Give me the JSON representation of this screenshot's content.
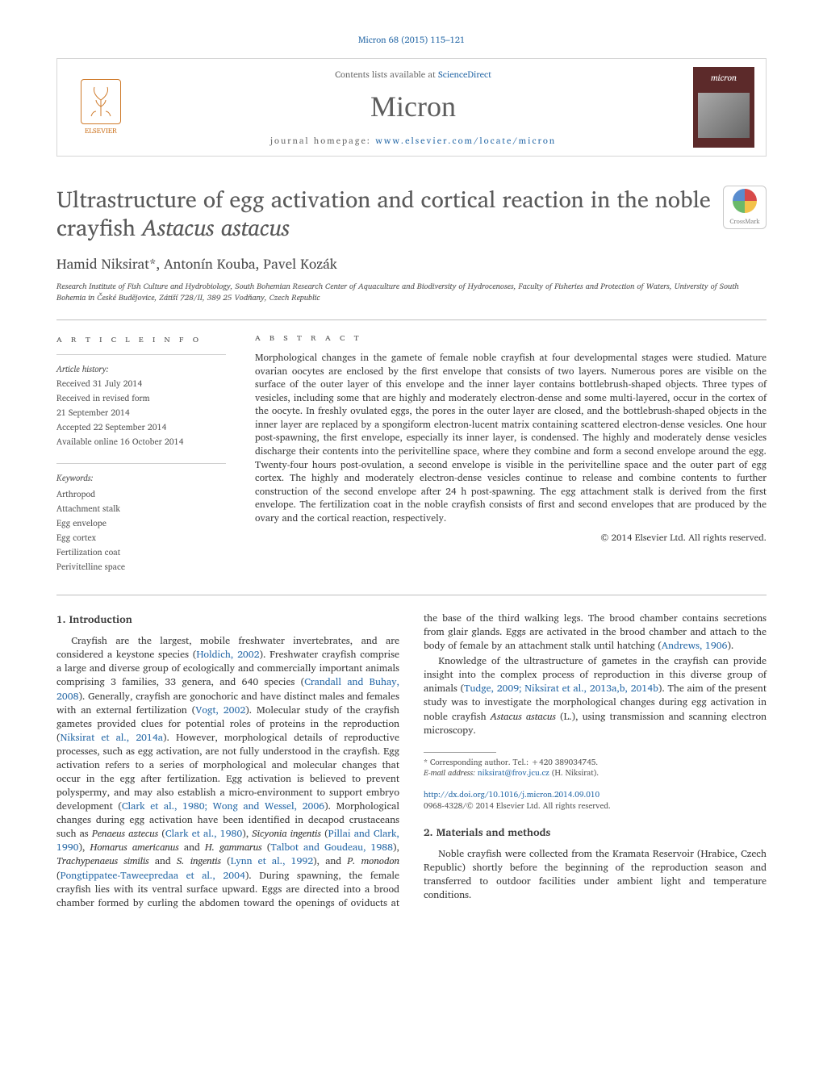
{
  "top_citation": "Micron 68 (2015) 115–121",
  "header": {
    "contents_prefix": "Contents lists available at ",
    "contents_link_text": "ScienceDirect",
    "journal_name": "Micron",
    "homepage_prefix": "journal homepage: ",
    "homepage_link_text": "www.elsevier.com/locate/micron",
    "publisher_name": "ELSEVIER",
    "cover_title": "micron"
  },
  "title_html": "Ultrastructure of egg activation and cortical reaction in the noble crayfish <em>Astacus astacus</em>",
  "crossmark_label": "CrossMark",
  "authors": "Hamid Niksirat*, Antonín Kouba, Pavel Kozák",
  "affiliation": "Research Institute of Fish Culture and Hydrobiology, South Bohemian Research Center of Aquaculture and Biodiversity of Hydrocenoses, Faculty of Fisheries and Protection of Waters, University of South Bohemia in České Budějovice, Zátiší 728/II, 389 25 Vodňany, Czech Republic",
  "article_info": {
    "heading": "a r t i c l e   i n f o",
    "history_title": "Article history:",
    "history_lines": [
      "Received 31 July 2014",
      "Received in revised form",
      "21 September 2014",
      "Accepted 22 September 2014",
      "Available online 16 October 2014"
    ],
    "keywords_title": "Keywords:",
    "keywords": [
      "Arthropod",
      "Attachment stalk",
      "Egg envelope",
      "Egg cortex",
      "Fertilization coat",
      "Perivitelline space"
    ]
  },
  "abstract": {
    "heading": "a b s t r a c t",
    "text": "Morphological changes in the gamete of female noble crayfish at four developmental stages were studied. Mature ovarian oocytes are enclosed by the first envelope that consists of two layers. Numerous pores are visible on the surface of the outer layer of this envelope and the inner layer contains bottlebrush-shaped objects. Three types of vesicles, including some that are highly and moderately electron-dense and some multi-layered, occur in the cortex of the oocyte. In freshly ovulated eggs, the pores in the outer layer are closed, and the bottlebrush-shaped objects in the inner layer are replaced by a spongiform electron-lucent matrix containing scattered electron-dense vesicles. One hour post-spawning, the first envelope, especially its inner layer, is condensed. The highly and moderately dense vesicles discharge their contents into the perivitelline space, where they combine and form a second envelope around the egg. Twenty-four hours post-ovulation, a second envelope is visible in the perivitelline space and the outer part of egg cortex. The highly and moderately electron-dense vesicles continue to release and combine contents to further construction of the second envelope after 24 h post-spawning. The egg attachment stalk is derived from the first envelope. The fertilization coat in the noble crayfish consists of first and second envelopes that are produced by the ovary and the cortical reaction, respectively.",
    "copyright": "© 2014 Elsevier Ltd. All rights reserved."
  },
  "intro": {
    "heading": "1.  Introduction",
    "para1_pre": "Crayfish are the largest, mobile freshwater invertebrates, and are considered a keystone species (",
    "link1": "Holdich, 2002",
    "para1_mid1": "). Freshwater crayfish comprise a large and diverse group of ecologically and commercially important animals comprising 3 families, 33 genera, and 640 species (",
    "link2": "Crandall and Buhay, 2008",
    "para1_mid2": "). Generally, crayfish are gonochoric and have distinct males and females with an external fertilization (",
    "link3": "Vogt, 2002",
    "para1_mid3": "). Molecular study of the crayfish gametes provided clues for potential roles of proteins in the reproduction (",
    "link4": "Niksirat et al., 2014a",
    "para1_mid4": "). However, morphological details of reproductive processes, such as egg activation, are not fully understood in the crayfish. Egg activation refers to a series of morphological and molecular changes that occur in the egg after fertilization. Egg activation is believed to prevent polyspermy, and may also establish a micro-environment to support embryo development (",
    "link5": "Clark et al., 1980; Wong and Wessel, 2006",
    "para1_mid5": "). Morphological changes during egg activation have been identified in decapod crustaceans such as ",
    "ital1": "Penaeus aztecus",
    "para1_mid6": " (",
    "link6": "Clark et al., 1980",
    "para1_mid7": "), ",
    "ital2": "Sicyonia ingentis",
    "para1_mid8": " (",
    "link7": "Pillai and Clark, 1990",
    "para1_mid9": "), ",
    "ital3": "Homarus americanus",
    "para1_mid10": " and ",
    "ital4": "H. gammarus",
    "para1_mid11": " (",
    "link8": "Talbot and Goudeau, 1988",
    "para1_mid12": "), ",
    "ital5": "Trachypenaeus similis",
    "para1_mid13": " and ",
    "ital6": "S. ingentis",
    "para1_mid14": " (",
    "link9": "Lynn et al., 1992",
    "para1_mid15": "), and ",
    "ital7": "P. monodon",
    "para1_mid16": " (",
    "link10": "Pongtippatee-Taweepredaa et al., 2004",
    "para1_end": "). During spawning, the female crayfish lies with its ventral surface upward. Eggs are directed into a brood chamber formed by curling the abdomen toward the openings of oviducts at the base of the third walking legs. The brood chamber contains secretions from glair glands. Eggs are activated in the brood chamber and attach to the body of female by an attachment stalk until hatching (",
    "link11": "Andrews, 1906",
    "para1_close": ").",
    "para2_pre": "Knowledge of the ultrastructure of gametes in the crayfish can provide insight into the complex process of reproduction in this diverse group of animals (",
    "link12": "Tudge, 2009; Niksirat et al., 2013a,b, 2014b",
    "para2_mid": "). The aim of the present study was to investigate the morphological changes during egg activation in noble crayfish ",
    "ital8": "Astacus astacus",
    "para2_end": " (L.), using transmission and scanning electron microscopy."
  },
  "methods": {
    "heading": "2.  Materials and methods",
    "para": "Noble crayfish were collected from the Kramata Reservoir (Hrabice, Czech Republic) shortly before the beginning of the reproduction season and transferred to outdoor facilities under ambient light and temperature conditions."
  },
  "footnotes": {
    "corresponding": "* Corresponding author. Tel.: +420 389034745.",
    "email_label": "E-mail address: ",
    "email": "niksirat@frov.jcu.cz",
    "email_suffix": " (H. Niksirat)."
  },
  "doi": {
    "url": "http://dx.doi.org/10.1016/j.micron.2014.09.010",
    "issn_line": "0968-4328/© 2014 Elsevier Ltd. All rights reserved."
  },
  "colors": {
    "link": "#2a6ba8",
    "text": "#3a3a3a",
    "muted": "#6a6a6a"
  }
}
